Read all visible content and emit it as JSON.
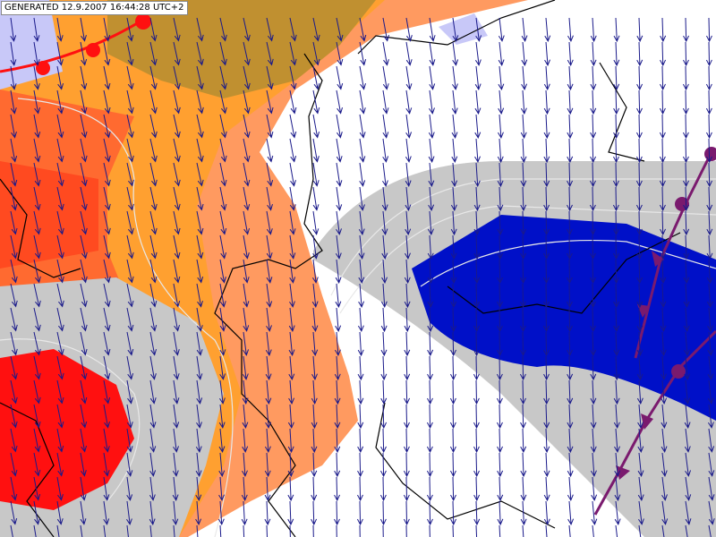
{
  "header": {
    "label": "GENERATED 12.9.2007 16:44:28 UTC+2"
  }
}
